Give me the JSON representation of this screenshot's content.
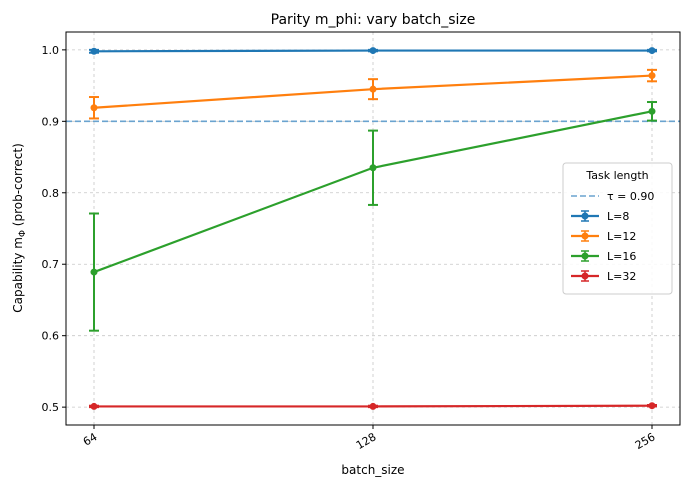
{
  "chart_data": {
    "type": "line",
    "title": "Parity m_phi: vary batch_size",
    "xlabel": "batch_size",
    "ylabel": "Capability m",
    "ylabel_subscript": "Φ",
    "ylabel_suffix": " (prob-correct)",
    "x_scale": "log2",
    "categories": [
      "64",
      "128",
      "256"
    ],
    "x": [
      64,
      128,
      256
    ],
    "ylim": [
      0.475,
      1.025
    ],
    "yticks": [
      "0.5",
      "0.6",
      "0.7",
      "0.8",
      "0.9",
      "1.0"
    ],
    "ytick_values": [
      0.5,
      0.6,
      0.7,
      0.8,
      0.9,
      1.0
    ],
    "grid": true,
    "threshold": {
      "label": "τ = 0.90",
      "value": 0.9,
      "color": "#6aa3cf"
    },
    "legend": {
      "title": "Task length",
      "placement": "center-right"
    },
    "series": [
      {
        "name": "L=8",
        "color": "#1f77b4",
        "values": [
          0.998,
          0.999,
          0.999
        ],
        "errors": [
          0.002,
          0.001,
          0.001
        ]
      },
      {
        "name": "L=12",
        "color": "#ff7f0e",
        "values": [
          0.919,
          0.945,
          0.964
        ],
        "errors": [
          0.015,
          0.014,
          0.008
        ]
      },
      {
        "name": "L=16",
        "color": "#2ca02c",
        "values": [
          0.689,
          0.835,
          0.914
        ],
        "errors": [
          0.082,
          0.052,
          0.013
        ]
      },
      {
        "name": "L=32",
        "color": "#d62728",
        "values": [
          0.501,
          0.501,
          0.502
        ],
        "errors": [
          0.001,
          0.001,
          0.001
        ]
      }
    ]
  }
}
